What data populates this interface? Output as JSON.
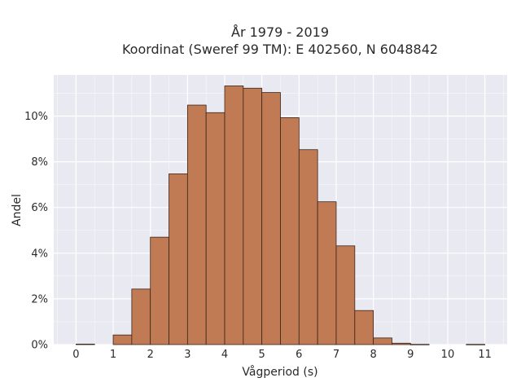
{
  "chart_data": {
    "type": "bar",
    "title": "År 1979 - 2019",
    "subtitle": "Koordinat (Sweref 99 TM): E 402560, N 6048842",
    "xlabel": "Vågperiod (s)",
    "ylabel": "Andel",
    "bin_width": 0.5,
    "bin_starts": [
      0,
      0.5,
      1,
      1.5,
      2,
      2.5,
      3,
      3.5,
      4,
      4.5,
      5,
      5.5,
      6,
      6.5,
      7,
      7.5,
      8,
      8.5,
      9,
      9.5,
      10,
      10.5
    ],
    "values": [
      0.0002,
      0,
      0.0042,
      0.0243,
      0.047,
      0.0747,
      0.1048,
      0.1015,
      0.1132,
      0.1122,
      0.1103,
      0.0993,
      0.0853,
      0.0625,
      0.0432,
      0.0149,
      0.0029,
      0.0006,
      0.0001,
      0,
      0,
      0.0001
    ],
    "x_ticks": [
      "0",
      "1",
      "2",
      "3",
      "4",
      "5",
      "6",
      "7",
      "8",
      "9",
      "10",
      "11"
    ],
    "y_ticks": [
      "0%",
      "2%",
      "4%",
      "6%",
      "8%",
      "10%"
    ],
    "xlim": [
      -0.6,
      11.6
    ],
    "ylim": [
      0,
      0.118
    ],
    "grid": true,
    "colors": {
      "bar": "#c07b55",
      "bar_edge": "#3a2418",
      "plot_bg": "#e9e9f1",
      "grid": "#ffffff"
    }
  }
}
